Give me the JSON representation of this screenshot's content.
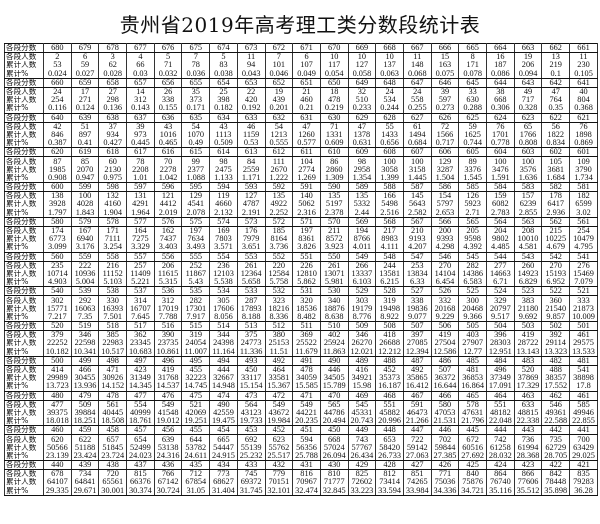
{
  "title": "贵州省2019年高考理工类分数段统计表",
  "row_labels": {
    "score": "各段分数",
    "count": "各段人数",
    "cumulative": "累计人数",
    "percent": "累计%"
  },
  "blocks": [
    {
      "scores": [
        "680",
        "679",
        "678",
        "677",
        "676",
        "675",
        "674",
        "673",
        "672",
        "671",
        "670",
        "669",
        "668",
        "667",
        "666",
        "665",
        "664",
        "663",
        "662",
        "661"
      ],
      "counts": [
        "2",
        "6",
        "3",
        "4",
        "5",
        "7",
        "5",
        "11",
        "7",
        "6",
        "10",
        "10",
        "10",
        "11",
        "15",
        "8",
        "16",
        "19",
        "13",
        "11"
      ],
      "cumulative": [
        "53",
        "59",
        "62",
        "66",
        "71",
        "78",
        "83",
        "94",
        "101",
        "107",
        "117",
        "127",
        "137",
        "148",
        "163",
        "171",
        "187",
        "206",
        "219",
        "230"
      ],
      "percent": [
        "0.024",
        "0.027",
        "0.028",
        "0.03",
        "0.032",
        "0.036",
        "0.038",
        "0.043",
        "0.046",
        "0.049",
        "0.054",
        "0.058",
        "0.063",
        "0.068",
        "0.075",
        "0.078",
        "0.086",
        "0.094",
        "0.1",
        "0.105"
      ]
    },
    {
      "scores": [
        "660",
        "659",
        "658",
        "657",
        "656",
        "655",
        "654",
        "653",
        "652",
        "651",
        "650",
        "649",
        "648",
        "647",
        "646",
        "645",
        "644",
        "643",
        "642",
        "641"
      ],
      "counts": [
        "24",
        "17",
        "27",
        "14",
        "26",
        "35",
        "25",
        "22",
        "19",
        "21",
        "18",
        "32",
        "24",
        "24",
        "39",
        "33",
        "38",
        "49",
        "47",
        "40"
      ],
      "cumulative": [
        "254",
        "271",
        "298",
        "312",
        "338",
        "373",
        "398",
        "420",
        "439",
        "460",
        "478",
        "510",
        "534",
        "558",
        "597",
        "630",
        "668",
        "717",
        "764",
        "804"
      ],
      "percent": [
        "0.116",
        "0.124",
        "0.136",
        "0.143",
        "0.155",
        "0.171",
        "0.182",
        "0.192",
        "0.201",
        "0.21",
        "0.219",
        "0.233",
        "0.244",
        "0.255",
        "0.273",
        "0.288",
        "0.306",
        "0.328",
        "0.35",
        "0.368"
      ]
    },
    {
      "scores": [
        "640",
        "639",
        "638",
        "637",
        "636",
        "635",
        "634",
        "633",
        "632",
        "631",
        "630",
        "629",
        "628",
        "627",
        "626",
        "625",
        "624",
        "623",
        "622",
        "621"
      ],
      "counts": [
        "42",
        "51",
        "37",
        "39",
        "43",
        "54",
        "43",
        "46",
        "54",
        "47",
        "71",
        "47",
        "55",
        "61",
        "72",
        "59",
        "76",
        "65",
        "56",
        "76"
      ],
      "cumulative": [
        "846",
        "897",
        "934",
        "973",
        "1016",
        "1070",
        "1113",
        "1159",
        "1213",
        "1260",
        "1331",
        "1378",
        "1433",
        "1494",
        "1566",
        "1625",
        "1701",
        "1766",
        "1822",
        "1898"
      ],
      "percent": [
        "0.387",
        "0.41",
        "0.427",
        "0.445",
        "0.465",
        "0.49",
        "0.509",
        "0.53",
        "0.555",
        "0.577",
        "0.609",
        "0.631",
        "0.656",
        "0.684",
        "0.717",
        "0.744",
        "0.778",
        "0.808",
        "0.834",
        "0.869"
      ]
    },
    {
      "scores": [
        "620",
        "619",
        "618",
        "617",
        "616",
        "615",
        "614",
        "613",
        "612",
        "611",
        "610",
        "609",
        "608",
        "607",
        "606",
        "605",
        "604",
        "603",
        "602",
        "601"
      ],
      "counts": [
        "87",
        "85",
        "60",
        "78",
        "70",
        "99",
        "98",
        "84",
        "111",
        "104",
        "86",
        "98",
        "100",
        "100",
        "129",
        "89",
        "100",
        "100",
        "105",
        "109"
      ],
      "cumulative": [
        "1985",
        "2070",
        "2130",
        "2208",
        "2278",
        "2377",
        "2475",
        "2559",
        "2670",
        "2774",
        "2860",
        "2958",
        "3058",
        "3158",
        "3287",
        "3376",
        "3476",
        "3576",
        "3681",
        "3790"
      ],
      "percent": [
        "0.908",
        "0.947",
        "0.975",
        "1.01",
        "1.042",
        "1.088",
        "1.133",
        "1.171",
        "1.222",
        "1.269",
        "1.309",
        "1.354",
        "1.399",
        "1.445",
        "1.504",
        "1.545",
        "1.591",
        "1.636",
        "1.684",
        "1.734"
      ]
    },
    {
      "scores": [
        "600",
        "599",
        "598",
        "597",
        "596",
        "595",
        "594",
        "593",
        "592",
        "591",
        "590",
        "589",
        "588",
        "587",
        "586",
        "585",
        "584",
        "583",
        "582",
        "581"
      ],
      "counts": [
        "138",
        "100",
        "132",
        "131",
        "121",
        "129",
        "119",
        "127",
        "135",
        "140",
        "135",
        "135",
        "166",
        "145",
        "154",
        "126",
        "159",
        "157",
        "178",
        "182"
      ],
      "cumulative": [
        "3928",
        "4028",
        "4160",
        "4291",
        "4412",
        "4541",
        "4660",
        "4787",
        "4922",
        "5062",
        "5197",
        "5332",
        "5498",
        "5643",
        "5797",
        "5923",
        "6082",
        "6239",
        "6417",
        "6599"
      ],
      "percent": [
        "1.797",
        "1.843",
        "1.904",
        "1.964",
        "2.019",
        "2.078",
        "2.132",
        "2.191",
        "2.252",
        "2.316",
        "2.378",
        "2.44",
        "2.516",
        "2.582",
        "2.653",
        "2.71",
        "2.783",
        "2.855",
        "2.936",
        "3.02"
      ]
    },
    {
      "scores": [
        "580",
        "579",
        "578",
        "577",
        "576",
        "575",
        "574",
        "573",
        "572",
        "571",
        "570",
        "569",
        "568",
        "567",
        "566",
        "565",
        "564",
        "563",
        "562",
        "561"
      ],
      "counts": [
        "174",
        "167",
        "171",
        "164",
        "162",
        "197",
        "169",
        "176",
        "185",
        "197",
        "211",
        "194",
        "217",
        "210",
        "200",
        "205",
        "204",
        "208",
        "215",
        "254"
      ],
      "cumulative": [
        "6773",
        "6940",
        "7111",
        "7275",
        "7437",
        "7634",
        "7803",
        "7979",
        "8164",
        "8361",
        "8572",
        "8766",
        "8983",
        "9193",
        "9393",
        "9598",
        "9802",
        "10010",
        "10225",
        "10479"
      ],
      "percent": [
        "3.099",
        "3.176",
        "3.254",
        "3.329",
        "3.403",
        "3.493",
        "3.571",
        "3.651",
        "3.736",
        "3.826",
        "3.923",
        "4.011",
        "4.111",
        "4.207",
        "4.298",
        "4.392",
        "4.485",
        "4.581",
        "4.679",
        "4.795"
      ]
    },
    {
      "scores": [
        "560",
        "559",
        "558",
        "557",
        "556",
        "555",
        "554",
        "553",
        "552",
        "551",
        "550",
        "549",
        "548",
        "547",
        "546",
        "545",
        "544",
        "543",
        "542",
        "541"
      ],
      "counts": [
        "235",
        "222",
        "216",
        "257",
        "206",
        "252",
        "236",
        "261",
        "220",
        "226",
        "261",
        "266",
        "244",
        "253",
        "270",
        "282",
        "277",
        "260",
        "270",
        "276"
      ],
      "cumulative": [
        "10714",
        "10936",
        "11152",
        "11409",
        "11615",
        "11867",
        "12103",
        "12364",
        "12584",
        "12810",
        "13071",
        "13337",
        "13581",
        "13834",
        "14104",
        "14386",
        "14663",
        "14923",
        "15193",
        "15469"
      ],
      "percent": [
        "4.903",
        "5.004",
        "5.103",
        "5.221",
        "5.315",
        "5.43",
        "5.538",
        "5.658",
        "5.758",
        "5.862",
        "5.981",
        "6.103",
        "6.215",
        "6.33",
        "6.454",
        "6.583",
        "6.71",
        "6.829",
        "6.952",
        "7.079"
      ]
    },
    {
      "scores": [
        "540",
        "539",
        "538",
        "537",
        "536",
        "535",
        "534",
        "533",
        "532",
        "531",
        "530",
        "529",
        "528",
        "527",
        "526",
        "525",
        "524",
        "523",
        "522",
        "521"
      ],
      "counts": [
        "302",
        "292",
        "330",
        "314",
        "312",
        "282",
        "305",
        "287",
        "323",
        "320",
        "340",
        "303",
        "319",
        "338",
        "332",
        "300",
        "329",
        "383",
        "360",
        "333"
      ],
      "cumulative": [
        "15771",
        "16063",
        "16393",
        "16707",
        "17019",
        "17301",
        "17606",
        "17893",
        "18216",
        "18536",
        "18876",
        "19179",
        "19498",
        "19836",
        "20168",
        "20468",
        "20797",
        "21180",
        "21540",
        "21873"
      ],
      "percent": [
        "7.217",
        "7.35",
        "7.501",
        "7.645",
        "7.788",
        "7.917",
        "8.056",
        "8.188",
        "8.336",
        "8.482",
        "8.638",
        "8.776",
        "8.922",
        "9.077",
        "9.229",
        "9.366",
        "9.517",
        "9.692",
        "9.857",
        "10.009"
      ]
    },
    {
      "scores": [
        "520",
        "519",
        "518",
        "517",
        "516",
        "515",
        "514",
        "513",
        "512",
        "511",
        "510",
        "509",
        "508",
        "507",
        "506",
        "505",
        "504",
        "503",
        "502",
        "501"
      ],
      "counts": [
        "379",
        "346",
        "385",
        "362",
        "390",
        "319",
        "344",
        "375",
        "380",
        "369",
        "402",
        "346",
        "418",
        "397",
        "419",
        "403",
        "396",
        "419",
        "392",
        "461"
      ],
      "cumulative": [
        "22252",
        "22598",
        "22983",
        "23345",
        "23735",
        "24054",
        "24398",
        "24773",
        "25153",
        "25522",
        "25924",
        "26270",
        "26688",
        "27085",
        "27504",
        "27907",
        "28303",
        "28722",
        "29114",
        "29575"
      ],
      "percent": [
        "10.182",
        "10.341",
        "10.517",
        "10.683",
        "10.861",
        "11.007",
        "11.164",
        "11.336",
        "11.51",
        "11.679",
        "11.863",
        "12.021",
        "12.212",
        "12.394",
        "12.586",
        "12.77",
        "12.951",
        "13.143",
        "13.323",
        "13.533"
      ]
    },
    {
      "scores": [
        "500",
        "499",
        "498",
        "497",
        "496",
        "495",
        "494",
        "493",
        "492",
        "491",
        "490",
        "489",
        "488",
        "487",
        "486",
        "485",
        "484",
        "483",
        "482",
        "481"
      ],
      "counts": [
        "414",
        "466",
        "471",
        "423",
        "419",
        "455",
        "444",
        "450",
        "464",
        "478",
        "446",
        "416",
        "452",
        "492",
        "507",
        "481",
        "496",
        "520",
        "488",
        "541"
      ],
      "cumulative": [
        "29989",
        "30455",
        "30926",
        "31349",
        "31768",
        "32223",
        "32667",
        "33117",
        "33581",
        "34059",
        "34505",
        "34921",
        "35373",
        "35865",
        "36372",
        "36853",
        "37349",
        "37869",
        "38357",
        "38898"
      ],
      "percent": [
        "13.723",
        "13.936",
        "14.152",
        "14.345",
        "14.537",
        "14.745",
        "14.948",
        "15.154",
        "15.367",
        "15.585",
        "15.789",
        "15.98",
        "16.187",
        "16.412",
        "16.644",
        "16.864",
        "17.091",
        "17.329",
        "17.552",
        "17.8"
      ]
    },
    {
      "scores": [
        "480",
        "479",
        "478",
        "477",
        "476",
        "475",
        "474",
        "473",
        "472",
        "471",
        "470",
        "469",
        "468",
        "467",
        "466",
        "465",
        "464",
        "463",
        "462",
        "461"
      ],
      "counts": [
        "477",
        "509",
        "561",
        "554",
        "549",
        "521",
        "490",
        "564",
        "549",
        "549",
        "565",
        "545",
        "551",
        "591",
        "580",
        "578",
        "551",
        "633",
        "546",
        "585"
      ],
      "cumulative": [
        "39375",
        "39884",
        "40445",
        "40999",
        "41548",
        "42069",
        "42559",
        "43123",
        "43672",
        "44221",
        "44786",
        "45331",
        "45882",
        "46473",
        "47053",
        "47631",
        "48182",
        "48815",
        "49361",
        "49946"
      ],
      "percent": [
        "18.018",
        "18.251",
        "18.508",
        "18.761",
        "19.012",
        "19.251",
        "19.475",
        "19.733",
        "19.984",
        "20.235",
        "20.494",
        "20.743",
        "20.996",
        "21.266",
        "21.531",
        "21.796",
        "22.048",
        "22.338",
        "22.588",
        "22.855"
      ]
    },
    {
      "scores": [
        "460",
        "459",
        "458",
        "457",
        "456",
        "455",
        "454",
        "453",
        "452",
        "451",
        "450",
        "449",
        "448",
        "447",
        "446",
        "445",
        "444",
        "443",
        "442",
        "441"
      ],
      "counts": [
        "620",
        "622",
        "657",
        "654",
        "639",
        "644",
        "665",
        "692",
        "623",
        "594",
        "668",
        "743",
        "653",
        "722",
        "702",
        "672",
        "742",
        "736",
        "735",
        "700"
      ],
      "cumulative": [
        "50566",
        "51188",
        "51845",
        "52499",
        "53138",
        "53782",
        "54447",
        "55139",
        "55762",
        "56356",
        "57024",
        "57767",
        "58420",
        "59142",
        "59844",
        "60516",
        "61258",
        "61994",
        "62729",
        "63429"
      ],
      "percent": [
        "23.139",
        "23.424",
        "23.724",
        "24.023",
        "24.316",
        "24.611",
        "24.915",
        "25.232",
        "25.517",
        "25.788",
        "26.094",
        "26.434",
        "26.733",
        "27.063",
        "27.385",
        "27.692",
        "28.032",
        "28.368",
        "28.705",
        "29.025"
      ]
    },
    {
      "scores": [
        "440",
        "439",
        "438",
        "437",
        "436",
        "435",
        "434",
        "433",
        "432",
        "431",
        "430",
        "429",
        "428",
        "427",
        "426",
        "425",
        "424",
        "423",
        "422",
        "421"
      ],
      "counts": [
        "678",
        "734",
        "720",
        "815",
        "766",
        "712",
        "773",
        "745",
        "779",
        "816",
        "810",
        "825",
        "812",
        "851",
        "771",
        "840",
        "864",
        "866",
        "842",
        "835"
      ],
      "cumulative": [
        "64107",
        "64841",
        "65561",
        "66376",
        "67142",
        "67854",
        "68627",
        "69372",
        "70151",
        "70967",
        "71777",
        "72602",
        "73414",
        "74265",
        "75036",
        "75876",
        "76740",
        "77606",
        "78448",
        "79283"
      ],
      "percent": [
        "29.335",
        "29.671",
        "30.001",
        "30.374",
        "30.724",
        "31.05",
        "31.404",
        "31.745",
        "32.101",
        "32.474",
        "32.845",
        "33.223",
        "33.594",
        "33.984",
        "34.336",
        "34.721",
        "35.116",
        "35.512",
        "35.898",
        "36.28"
      ]
    }
  ]
}
